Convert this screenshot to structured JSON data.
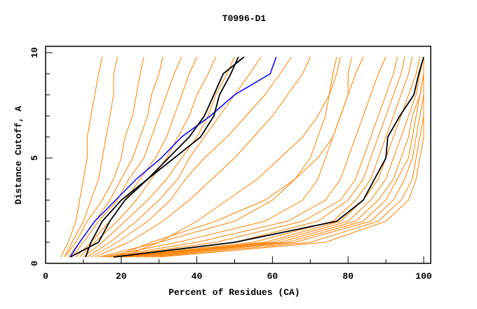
{
  "chart_data": {
    "type": "line",
    "title": "T0996-D1",
    "xlabel": "Percent of Residues (CA)",
    "ylabel": "Distance Cutoff, A",
    "xlim": [
      0,
      100
    ],
    "ylim": [
      0,
      10
    ],
    "xticks": [
      "0",
      "20",
      "40",
      "60",
      "80",
      "100"
    ],
    "xtick_values": [
      0,
      20,
      40,
      60,
      80,
      100
    ],
    "yticks": [
      "0",
      "5",
      "10"
    ],
    "ytick_values": [
      0,
      5,
      10
    ],
    "grid": false,
    "y": [
      0.3,
      1,
      2,
      3,
      4,
      5,
      6,
      7,
      8,
      9,
      9.8
    ],
    "colors": {
      "other": "#ff8000",
      "highlight": "#0000ff",
      "reference": "#000000"
    },
    "series_other": [
      [
        4,
        6,
        8,
        9,
        10,
        11,
        11,
        12,
        13,
        14,
        15
      ],
      [
        5,
        7,
        10,
        12,
        14,
        15,
        16,
        17,
        18,
        18,
        19
      ],
      [
        5,
        8,
        11,
        15,
        18,
        20,
        21,
        23,
        24,
        25,
        26
      ],
      [
        6,
        9,
        13,
        17,
        20,
        23,
        25,
        27,
        28,
        30,
        31
      ],
      [
        7,
        10,
        14,
        19,
        22,
        26,
        28,
        30,
        32,
        34,
        36
      ],
      [
        8,
        12,
        17,
        21,
        25,
        29,
        32,
        34,
        36,
        38,
        40
      ],
      [
        9,
        13,
        19,
        24,
        28,
        32,
        35,
        38,
        40,
        43,
        45
      ],
      [
        10,
        15,
        21,
        27,
        32,
        36,
        40,
        43,
        45,
        48,
        50
      ],
      [
        11,
        17,
        24,
        30,
        35,
        38,
        42,
        46,
        50,
        54,
        57
      ],
      [
        12,
        19,
        27,
        33,
        37,
        42,
        48,
        53,
        58,
        62,
        65
      ],
      [
        13,
        22,
        31,
        38,
        44,
        50,
        55,
        60,
        64,
        68,
        70
      ],
      [
        20,
        30,
        40,
        48,
        56,
        62,
        68,
        72,
        75,
        77,
        78
      ],
      [
        18,
        28,
        45,
        58,
        66,
        72,
        76,
        78,
        80,
        80,
        81
      ],
      [
        14,
        30,
        50,
        60,
        66,
        70,
        72,
        74,
        75,
        76,
        77
      ],
      [
        15,
        35,
        58,
        68,
        72,
        74,
        76,
        78,
        80,
        82,
        84
      ],
      [
        16,
        40,
        64,
        74,
        78,
        80,
        82,
        84,
        86,
        88,
        90
      ],
      [
        17,
        45,
        68,
        78,
        82,
        84,
        86,
        88,
        90,
        92,
        93
      ],
      [
        18,
        50,
        72,
        80,
        84,
        86,
        88,
        90,
        92,
        94,
        95
      ],
      [
        19,
        55,
        76,
        82,
        86,
        88,
        90,
        92,
        94,
        96,
        97
      ],
      [
        20,
        58,
        78,
        84,
        88,
        90,
        92,
        94,
        96,
        98,
        99
      ],
      [
        21,
        60,
        80,
        86,
        90,
        92,
        94,
        96,
        98,
        99,
        100
      ],
      [
        22,
        62,
        82,
        88,
        92,
        94,
        96,
        97,
        99,
        100,
        100
      ],
      [
        24,
        64,
        84,
        90,
        93,
        96,
        97,
        98,
        99,
        100,
        100
      ],
      [
        26,
        66,
        86,
        92,
        95,
        97,
        98,
        99,
        100,
        100,
        100
      ],
      [
        28,
        70,
        88,
        94,
        97,
        98,
        99,
        100,
        100,
        100,
        100
      ],
      [
        30,
        74,
        90,
        96,
        98,
        99,
        100,
        100,
        100,
        100,
        100
      ]
    ],
    "series_highlight": [
      [
        6.5,
        9,
        13,
        18.5,
        24,
        30.6,
        36,
        43.6,
        50,
        59.4,
        61
      ]
    ],
    "series_reference": [
      [
        18,
        50,
        77,
        84,
        87,
        90,
        90.5,
        93.7,
        97.4,
        98.7,
        100
      ],
      [
        10.6,
        12,
        15,
        20,
        27,
        34,
        41,
        44.5,
        46,
        49,
        51
      ],
      [
        6.5,
        14,
        17,
        21,
        27,
        32.5,
        38,
        42,
        44.5,
        47,
        52.5
      ]
    ]
  }
}
